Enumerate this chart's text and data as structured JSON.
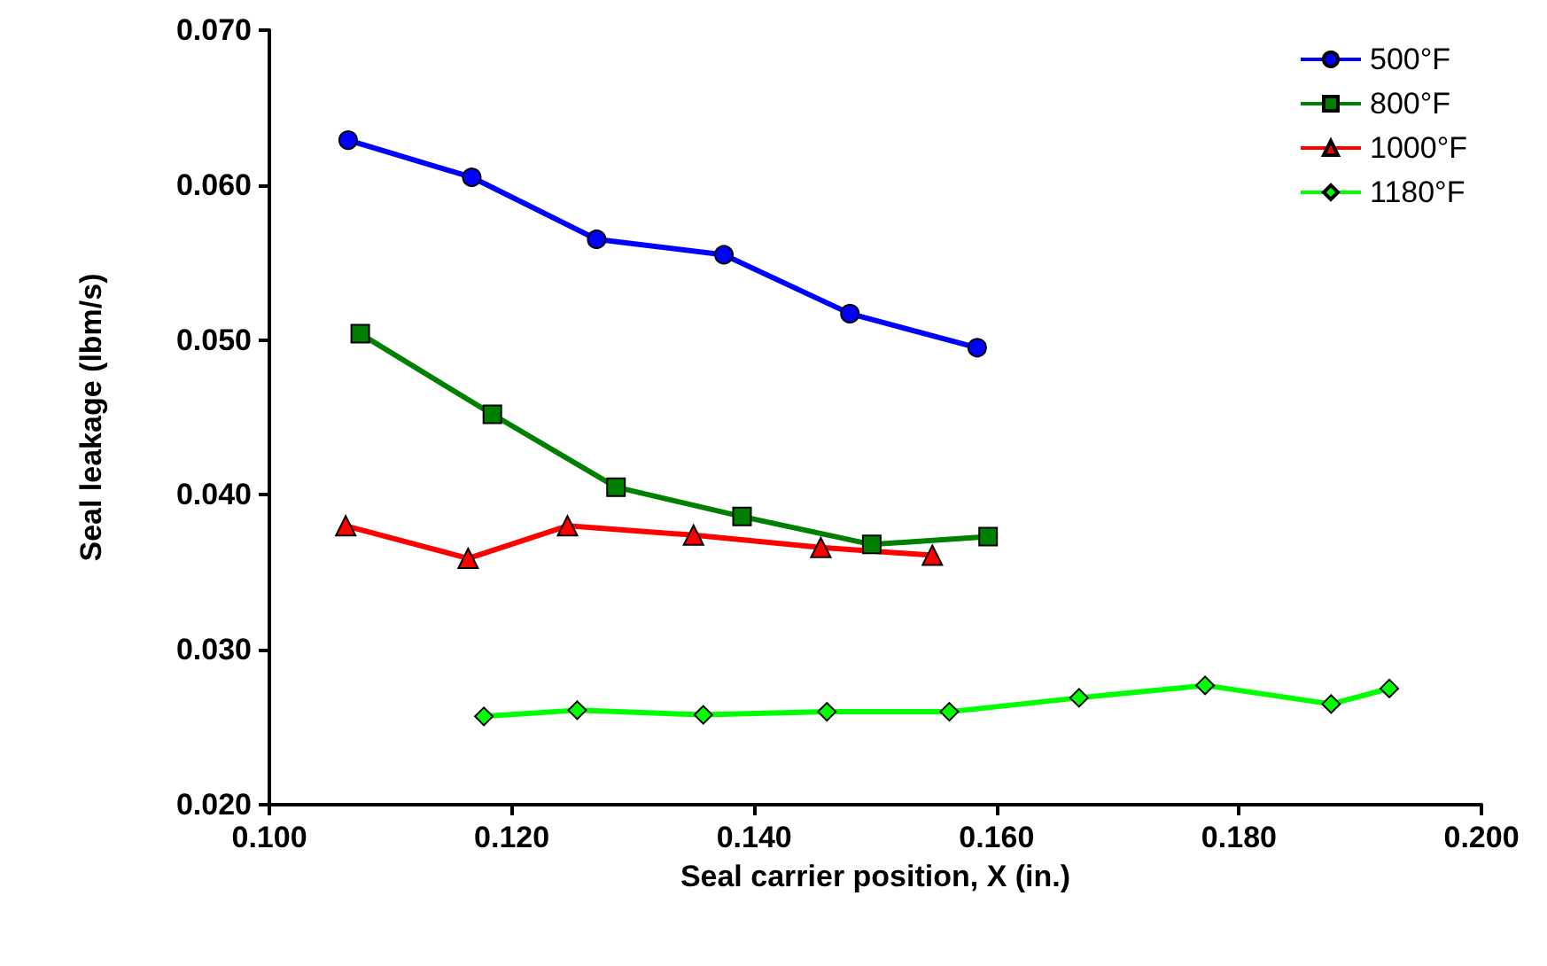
{
  "chart_data": {
    "type": "line",
    "xlabel": "Seal carrier position, X (in.)",
    "ylabel": "Seal leakage (lbm/s)",
    "xlim": [
      0.1,
      0.2
    ],
    "xticks": [
      {
        "value": 0.1,
        "label": "0.100"
      },
      {
        "value": 0.12,
        "label": "0.120"
      },
      {
        "value": 0.14,
        "label": "0.140"
      },
      {
        "value": 0.16,
        "label": "0.160"
      },
      {
        "value": 0.18,
        "label": "0.180"
      },
      {
        "value": 0.2,
        "label": "0.200"
      }
    ],
    "ylim": [
      0.02,
      0.07
    ],
    "yticks": [
      {
        "value": 0.02,
        "label": "0.020"
      },
      {
        "value": 0.03,
        "label": "0.030"
      },
      {
        "value": 0.04,
        "label": "0.040"
      },
      {
        "value": 0.05,
        "label": "0.050"
      },
      {
        "value": 0.06,
        "label": "0.060"
      },
      {
        "value": 0.07,
        "label": "0.070"
      }
    ],
    "grid": false,
    "legend": "top right",
    "line_style": "solid",
    "series": [
      {
        "name": "500°F",
        "color": "#0000ff",
        "marker": "circle",
        "x": [
          0.1065,
          0.1167,
          0.127,
          0.1375,
          0.1479,
          0.1584
        ],
        "values": [
          0.0629,
          0.0605,
          0.0565,
          0.0555,
          0.0517,
          0.0495
        ]
      },
      {
        "name": "800°F",
        "color": "#008000",
        "marker": "square",
        "x": [
          0.1075,
          0.1184,
          0.1286,
          0.139,
          0.1497,
          0.1593
        ],
        "values": [
          0.0504,
          0.0452,
          0.0405,
          0.0386,
          0.0368,
          0.0373
        ]
      },
      {
        "name": "1000°F",
        "color": "#ff0000",
        "marker": "triangle",
        "x": [
          0.1063,
          0.1164,
          0.1246,
          0.135,
          0.1455,
          0.1547
        ],
        "values": [
          0.038,
          0.0359,
          0.038,
          0.0374,
          0.0366,
          0.0361
        ]
      },
      {
        "name": "1180°F",
        "color": "#00ff00",
        "marker": "diamond",
        "x": [
          0.1177,
          0.1254,
          0.1358,
          0.146,
          0.1561,
          0.1668,
          0.1772,
          0.1876,
          0.1924
        ],
        "values": [
          0.0257,
          0.0261,
          0.0258,
          0.026,
          0.026,
          0.0269,
          0.0277,
          0.0265,
          0.0275
        ]
      }
    ]
  }
}
